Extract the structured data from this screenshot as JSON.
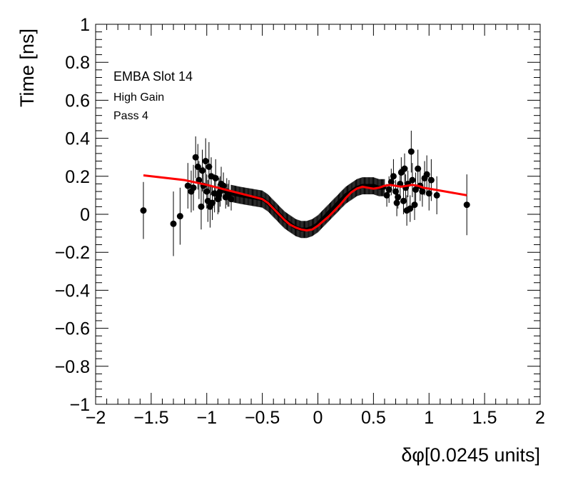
{
  "chart_data": {
    "type": "scatter",
    "xlabel": "δφ[0.0245 units]",
    "ylabel": "Time [ns]",
    "xlim": [
      -2,
      2
    ],
    "ylim": [
      -1,
      1
    ],
    "x_ticks": [
      -2,
      -1.5,
      -1,
      -0.5,
      0,
      0.5,
      1,
      1.5,
      2
    ],
    "x_tick_labels": [
      "−2",
      "−1.5",
      "−1",
      "−0.5",
      "0",
      "0.5",
      "1",
      "1.5",
      "2"
    ],
    "y_ticks": [
      -1,
      -0.8,
      -0.6,
      -0.4,
      -0.2,
      0,
      0.2,
      0.4,
      0.6,
      0.8,
      1
    ],
    "y_tick_labels": [
      "−1",
      "−0.8",
      "−0.6",
      "−0.4",
      "−0.2",
      "0",
      "0.2",
      "0.4",
      "0.6",
      "0.8",
      "1"
    ],
    "grid": false,
    "annotations": [
      "EMBA Slot 14",
      "High Gain",
      "Pass 4"
    ],
    "marker_color": "#000000",
    "fit_color": "#ff0000",
    "series": [
      {
        "kind": "points",
        "x": [
          -1.57,
          -1.3,
          -1.24,
          -1.17,
          -1.14,
          -1.12,
          -1.1,
          -1.08,
          -1.07,
          -1.05,
          -1.04,
          -1.03,
          -1.01,
          -1.0,
          -0.99,
          -0.98,
          -0.97,
          -0.96,
          -0.95,
          -0.93,
          -0.92,
          -0.9,
          -0.89,
          -0.88,
          -0.87,
          -0.85,
          -0.83,
          -0.82,
          -0.81,
          -0.8,
          -0.78,
          0.62,
          0.64,
          0.66,
          0.68,
          0.7,
          0.71,
          0.72,
          0.74,
          0.75,
          0.77,
          0.78,
          0.79,
          0.8,
          0.81,
          0.83,
          0.84,
          0.85,
          0.87,
          0.88,
          0.9,
          0.92,
          0.94,
          0.96,
          0.98,
          1.0,
          1.02,
          1.07,
          1.34
        ],
        "y": [
          0.02,
          -0.05,
          -0.01,
          0.15,
          0.12,
          0.14,
          0.3,
          0.25,
          0.18,
          0.04,
          0.23,
          0.15,
          0.28,
          0.12,
          0.07,
          0.25,
          0.04,
          0.2,
          0.06,
          0.11,
          0.19,
          0.08,
          0.1,
          0.12,
          0.16,
          0.15,
          0.09,
          0.12,
          0.1,
          0.11,
          0.08,
          0.1,
          0.13,
          0.17,
          0.2,
          0.12,
          0.06,
          0.09,
          0.16,
          0.22,
          0.07,
          0.24,
          0.14,
          0.02,
          0.16,
          0.03,
          0.33,
          0.18,
          0.05,
          0.13,
          0.24,
          0.15,
          0.12,
          0.19,
          0.21,
          0.11,
          0.18,
          0.1,
          0.05
        ],
        "yerr": [
          0.15,
          0.17,
          0.15,
          0.12,
          0.11,
          0.12,
          0.11,
          0.12,
          0.1,
          0.12,
          0.11,
          0.1,
          0.12,
          0.09,
          0.11,
          0.13,
          0.11,
          0.1,
          0.09,
          0.1,
          0.1,
          0.08,
          0.09,
          0.08,
          0.09,
          0.07,
          0.06,
          0.07,
          0.06,
          0.07,
          0.06,
          0.06,
          0.07,
          0.07,
          0.09,
          0.06,
          0.07,
          0.06,
          0.08,
          0.08,
          0.07,
          0.08,
          0.07,
          0.08,
          0.07,
          0.07,
          0.11,
          0.09,
          0.08,
          0.09,
          0.1,
          0.08,
          0.08,
          0.09,
          0.1,
          0.09,
          0.11,
          0.1,
          0.16
        ]
      },
      {
        "kind": "dense_band",
        "x": [
          -0.78,
          -0.7,
          -0.6,
          -0.5,
          -0.45,
          -0.4,
          -0.35,
          -0.3,
          -0.25,
          -0.2,
          -0.15,
          -0.1,
          -0.05,
          0.0,
          0.05,
          0.1,
          0.15,
          0.2,
          0.25,
          0.3,
          0.35,
          0.4,
          0.45,
          0.5,
          0.55,
          0.6
        ],
        "y": [
          0.11,
          0.1,
          0.09,
          0.08,
          0.06,
          0.03,
          0.0,
          -0.03,
          -0.05,
          -0.07,
          -0.08,
          -0.08,
          -0.07,
          -0.05,
          -0.02,
          0.01,
          0.04,
          0.07,
          0.1,
          0.12,
          0.14,
          0.15,
          0.15,
          0.15,
          0.14,
          0.14
        ],
        "yerr": 0.045
      },
      {
        "kind": "fit_line",
        "x": [
          -1.57,
          -1.2,
          -1.0,
          -0.8,
          -0.6,
          -0.5,
          -0.45,
          -0.4,
          -0.35,
          -0.3,
          -0.25,
          -0.2,
          -0.15,
          -0.1,
          -0.05,
          0.0,
          0.05,
          0.1,
          0.15,
          0.2,
          0.25,
          0.3,
          0.35,
          0.4,
          0.45,
          0.5,
          0.55,
          0.6,
          0.65,
          0.7,
          0.75,
          0.8,
          0.85,
          0.9,
          0.95,
          1.0,
          1.34
        ],
        "y": [
          0.205,
          0.18,
          0.155,
          0.125,
          0.095,
          0.08,
          0.06,
          0.03,
          0.0,
          -0.03,
          -0.055,
          -0.07,
          -0.08,
          -0.085,
          -0.08,
          -0.06,
          -0.035,
          -0.01,
          0.02,
          0.05,
          0.085,
          0.115,
          0.135,
          0.145,
          0.14,
          0.135,
          0.14,
          0.15,
          0.155,
          0.15,
          0.145,
          0.15,
          0.155,
          0.15,
          0.14,
          0.135,
          0.1
        ]
      }
    ]
  }
}
